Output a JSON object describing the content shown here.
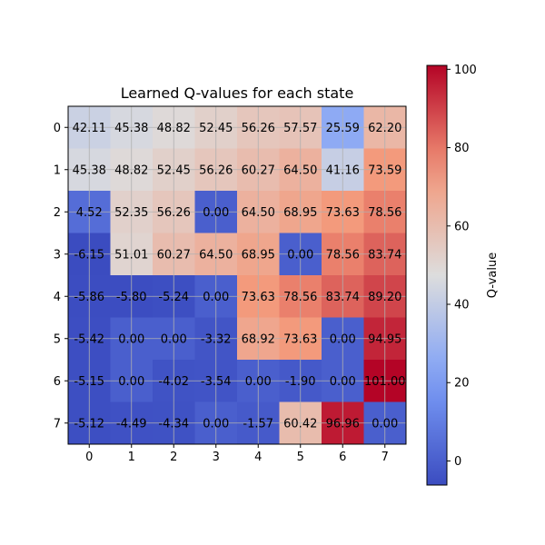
{
  "chart_data": {
    "type": "heatmap",
    "title": "Learned Q-values for each state",
    "xlabel": "",
    "ylabel": "",
    "x_ticks": [
      "0",
      "1",
      "2",
      "3",
      "4",
      "5",
      "6",
      "7"
    ],
    "y_ticks": [
      "0",
      "1",
      "2",
      "3",
      "4",
      "5",
      "6",
      "7"
    ],
    "colormap": "coolwarm",
    "vmin": -6.15,
    "vmax": 101.0,
    "grid": true,
    "colorbar": {
      "label": "Q-value",
      "ticks": [
        "0",
        "20",
        "40",
        "60",
        "80",
        "100"
      ],
      "tick_values": [
        0,
        20,
        40,
        60,
        80,
        100
      ]
    },
    "values": [
      [
        42.11,
        45.38,
        48.82,
        52.45,
        56.26,
        57.57,
        25.59,
        62.2
      ],
      [
        45.38,
        48.82,
        52.45,
        56.26,
        60.27,
        64.5,
        41.16,
        73.59
      ],
      [
        4.52,
        52.35,
        56.26,
        0.0,
        64.5,
        68.95,
        73.63,
        78.56
      ],
      [
        -6.15,
        51.01,
        60.27,
        64.5,
        68.95,
        0.0,
        78.56,
        83.74
      ],
      [
        -5.86,
        -5.8,
        -5.24,
        0.0,
        73.63,
        78.56,
        83.74,
        89.2
      ],
      [
        -5.42,
        0.0,
        0.0,
        -3.32,
        68.92,
        73.63,
        0.0,
        94.95
      ],
      [
        -5.15,
        0.0,
        -4.02,
        -3.54,
        0.0,
        -1.9,
        0.0,
        101.0
      ],
      [
        -5.12,
        -4.49,
        -4.34,
        0.0,
        -1.57,
        60.42,
        96.96,
        0.0
      ]
    ],
    "labels": [
      [
        "42.11",
        "45.38",
        "48.82",
        "52.45",
        "56.26",
        "57.57",
        "25.59",
        "62.20"
      ],
      [
        "45.38",
        "48.82",
        "52.45",
        "56.26",
        "60.27",
        "64.50",
        "41.16",
        "73.59"
      ],
      [
        "4.52",
        "52.35",
        "56.26",
        "0.00",
        "64.50",
        "68.95",
        "73.63",
        "78.56"
      ],
      [
        "-6.15",
        "51.01",
        "60.27",
        "64.50",
        "68.95",
        "0.00",
        "78.56",
        "83.74"
      ],
      [
        "-5.86",
        "-5.80",
        "-5.24",
        "0.00",
        "73.63",
        "78.56",
        "83.74",
        "89.20"
      ],
      [
        "-5.42",
        "0.00",
        "0.00",
        "-3.32",
        "68.92",
        "73.63",
        "0.00",
        "94.95"
      ],
      [
        "-5.15",
        "0.00",
        "-4.02",
        "-3.54",
        "0.00",
        "-1.90",
        "0.00",
        "101.00"
      ],
      [
        "-5.12",
        "-4.49",
        "-4.34",
        "0.00",
        "-1.57",
        "60.42",
        "96.96",
        "0.00"
      ]
    ]
  }
}
